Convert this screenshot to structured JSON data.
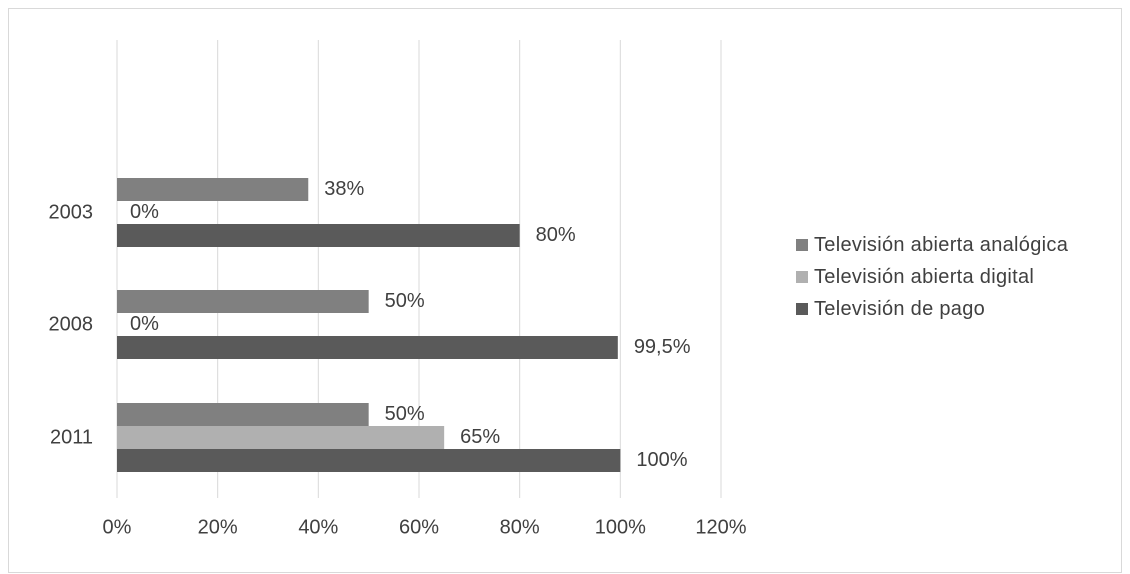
{
  "chart_data": {
    "type": "bar",
    "orientation": "horizontal",
    "categories": [
      "2003",
      "2008",
      "2011"
    ],
    "series": [
      {
        "name": "Televisión abierta analógica",
        "values": [
          38,
          50,
          50
        ],
        "labels": [
          "38%",
          "50%",
          "50%"
        ],
        "color": "#808080"
      },
      {
        "name": "Televisión abierta digital",
        "values": [
          0,
          0,
          65
        ],
        "labels": [
          "0%",
          "0%",
          "65%"
        ],
        "color": "#b0b0b0"
      },
      {
        "name": "Televisión de pago",
        "values": [
          80,
          99.5,
          100
        ],
        "labels": [
          "80%",
          "99,5%",
          "100%"
        ],
        "color": "#5a5a5a"
      }
    ],
    "xlim": [
      0,
      120
    ],
    "xticks": [
      "0%",
      "20%",
      "40%",
      "60%",
      "80%",
      "100%",
      "120%"
    ],
    "title": "",
    "xlabel": "",
    "ylabel": "",
    "grid": "vertical",
    "legend_position": "right"
  }
}
